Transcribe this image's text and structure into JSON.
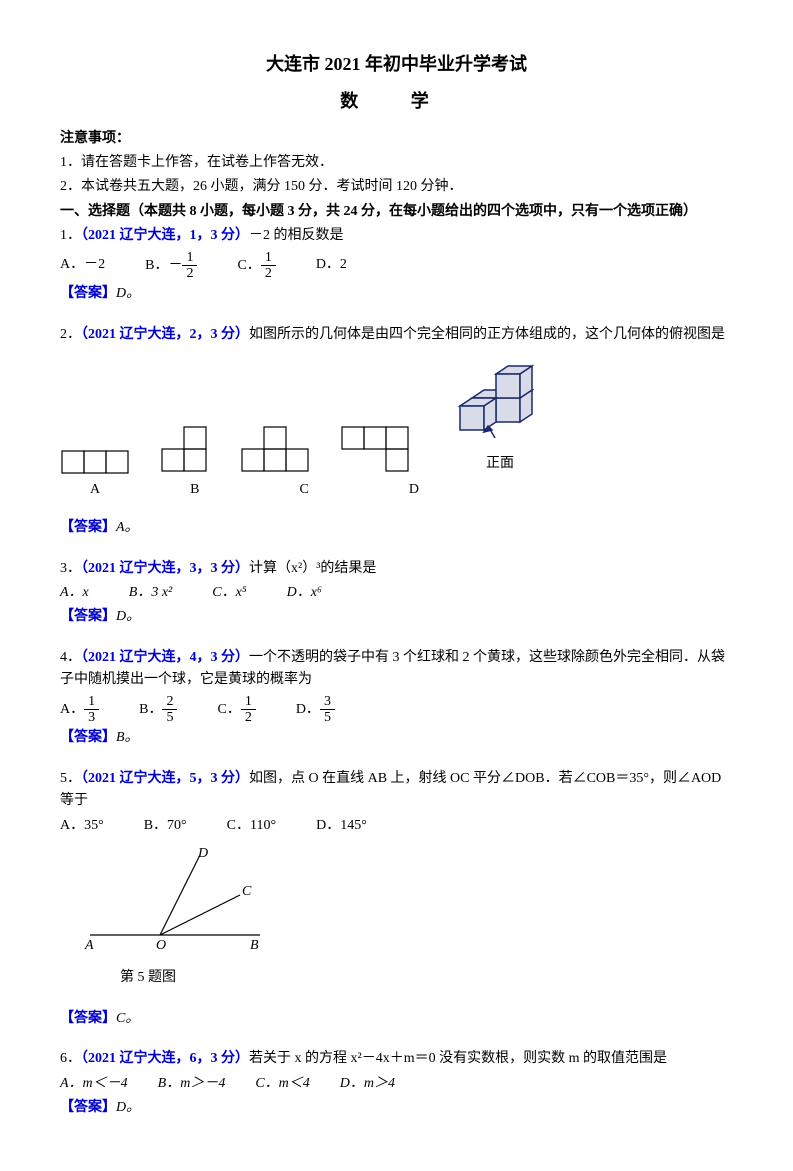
{
  "header": {
    "title1": "大连市 2021 年初中毕业升学考试",
    "title2": "数 学"
  },
  "notice": {
    "heading": "注意事项：",
    "line1": "1．请在答题卡上作答，在试卷上作答无效．",
    "line2": "2．本试卷共五大题，26 小题，满分 150 分．考试时间 120 分钟．"
  },
  "section1": "一、选择题（本题共 8 小题，每小题 3 分，共 24 分，在每小题给出的四个选项中，只有一个选项正确）",
  "q1": {
    "ref": "（2021 辽宁大连，1，3 分）",
    "stem_pre": "1．",
    "stem": "－2 的相反数是",
    "A": "A．－2",
    "B_pre": "B．－",
    "B_num": "1",
    "B_den": "2",
    "C_pre": "C．",
    "C_num": "1",
    "C_den": "2",
    "D": "D．2",
    "answer_label": "【答案】",
    "answer": "D。"
  },
  "q2": {
    "ref": "（2021 辽宁大连，2，3 分）",
    "stem_pre": "2．",
    "stem": "如图所示的几何体是由四个完全相同的正方体组成的，这个几何体的俯视图是",
    "labels": {
      "A": "A",
      "B": "B",
      "C": "C",
      "D": "D",
      "front": "正面"
    },
    "answer_label": "【答案】",
    "answer": "A。"
  },
  "q3": {
    "ref": "（2021 辽宁大连，3，3 分）",
    "stem_pre": "3．",
    "stem": "计算（x²）³的结果是",
    "A": "A．x",
    "B": "B．3 x²",
    "C": "C．x⁵",
    "D": "D．x⁶",
    "answer_label": "【答案】",
    "answer": "D。"
  },
  "q4": {
    "ref": "（2021 辽宁大连，4，3 分）",
    "stem_pre": "4．",
    "stem": "一个不透明的袋子中有 3 个红球和 2 个黄球，这些球除颜色外完全相同．从袋子中随机摸出一个球，它是黄球的概率为",
    "A_pre": "A．",
    "A_num": "1",
    "A_den": "3",
    "B_pre": "B．",
    "B_num": "2",
    "B_den": "5",
    "C_pre": "C．",
    "C_num": "1",
    "C_den": "2",
    "D_pre": "D．",
    "D_num": "3",
    "D_den": "5",
    "answer_label": "【答案】",
    "answer": "B。"
  },
  "q5": {
    "ref": "（2021 辽宁大连，5，3 分）",
    "stem_pre": "5．",
    "stem": "如图，点 O 在直线 AB 上，射线 OC 平分∠DOB．若∠COB＝35°，则∠AOD 等于",
    "A": "A．35°",
    "B": "B．70°",
    "C": "C．110°",
    "D": "D．145°",
    "caption": "第 5 题图",
    "answer_label": "【答案】",
    "answer": "C。",
    "diagram": {
      "A": "A",
      "O": "O",
      "B": "B",
      "C": "C",
      "D": "D",
      "line_color": "#000000",
      "font": "italic 14px Times"
    }
  },
  "q6": {
    "ref": "（2021 辽宁大连，6，3 分）",
    "stem_pre": "6．",
    "stem": "若关于 x 的方程 x²－4x＋m＝0 没有实数根，则实数 m 的取值范围是",
    "A": "A．m＜－4",
    "B": "B．m＞－4",
    "C": "C．m＜4",
    "D": "D．m＞4",
    "answer_label": "【答案】",
    "answer": "D。"
  },
  "figures": {
    "q2": {
      "cell": 22,
      "stroke": "#000000",
      "cube_fill": "#d8dce8",
      "cube_stroke": "#1a2a6c",
      "A": {
        "rows": 1,
        "cols": 3
      },
      "B": {
        "shape": "L"
      },
      "C": {
        "shape": "plus"
      },
      "D": {
        "shape": "T"
      }
    }
  }
}
